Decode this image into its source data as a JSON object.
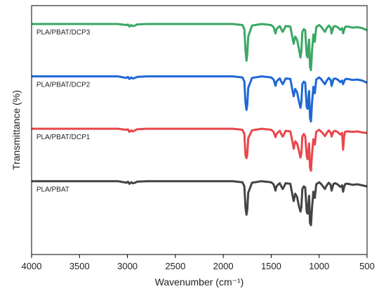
{
  "chart_data": {
    "type": "line",
    "xlabel": "Wavenumber (cm⁻¹)",
    "ylabel": "Transmittance (%)",
    "xlim": [
      4000,
      500
    ],
    "x_reversed": true,
    "xticks": [
      4000,
      3500,
      3000,
      2500,
      2000,
      1500,
      1000,
      500
    ],
    "xtick_labels": [
      "4000",
      "3500",
      "3000",
      "2500",
      "2000",
      "1500",
      "1000",
      "500"
    ],
    "ylim": [
      -0.4,
      4.35
    ],
    "y_ticks_shown": false,
    "grid": false,
    "legend": "none",
    "series": [
      {
        "name": "PLA/PBAT",
        "color": "#444444",
        "offset": 0,
        "x": [
          4000,
          3100,
          3010,
          2995,
          2980,
          2960,
          2945,
          2920,
          2900,
          2800,
          2000,
          1900,
          1800,
          1780,
          1768,
          1758,
          1750,
          1740,
          1700,
          1600,
          1500,
          1475,
          1455,
          1445,
          1430,
          1410,
          1395,
          1380,
          1365,
          1350,
          1300,
          1275,
          1265,
          1250,
          1230,
          1210,
          1195,
          1185,
          1175,
          1160,
          1145,
          1130,
          1120,
          1105,
          1095,
          1085,
          1075,
          1060,
          1045,
          1030,
          1000,
          980,
          960,
          940,
          920,
          900,
          880,
          870,
          860,
          850,
          830,
          800,
          780,
          760,
          750,
          740,
          730,
          720,
          700,
          650,
          600,
          550,
          500
        ],
        "y": [
          1.0,
          1.0,
          0.97,
          0.99,
          0.95,
          0.98,
          0.96,
          0.97,
          0.99,
          1.0,
          1.0,
          1.0,
          0.98,
          0.9,
          0.5,
          0.36,
          0.45,
          0.78,
          0.97,
          1.0,
          0.98,
          0.94,
          0.82,
          0.9,
          0.93,
          0.96,
          0.9,
          0.85,
          0.9,
          0.96,
          0.95,
          0.7,
          0.62,
          0.76,
          0.7,
          0.52,
          0.42,
          0.5,
          0.85,
          0.9,
          0.88,
          0.42,
          0.38,
          0.72,
          0.2,
          0.16,
          0.48,
          0.8,
          0.68,
          0.94,
          0.98,
          0.95,
          0.9,
          0.85,
          0.92,
          0.97,
          0.93,
          0.82,
          0.88,
          0.95,
          0.96,
          0.93,
          0.89,
          0.92,
          0.8,
          0.88,
          0.94,
          0.95,
          0.95,
          0.93,
          0.94,
          0.92,
          0.9
        ]
      },
      {
        "name": "PLA/PBAT/DCP1",
        "color": "#e8474c",
        "offset": 1,
        "x": [
          4000,
          3100,
          3010,
          2995,
          2980,
          2960,
          2945,
          2920,
          2900,
          2800,
          2000,
          1900,
          1800,
          1780,
          1768,
          1758,
          1750,
          1740,
          1700,
          1600,
          1500,
          1475,
          1455,
          1445,
          1430,
          1410,
          1395,
          1380,
          1365,
          1350,
          1300,
          1275,
          1265,
          1250,
          1230,
          1210,
          1195,
          1185,
          1175,
          1160,
          1145,
          1130,
          1120,
          1105,
          1095,
          1085,
          1075,
          1060,
          1045,
          1030,
          1000,
          980,
          960,
          940,
          920,
          900,
          880,
          870,
          860,
          850,
          830,
          800,
          780,
          760,
          750,
          740,
          730,
          720,
          700,
          650,
          600,
          550,
          500
        ],
        "y": [
          1.0,
          1.0,
          0.98,
          0.99,
          0.94,
          0.97,
          0.95,
          0.97,
          0.99,
          1.0,
          1.0,
          1.0,
          0.98,
          0.9,
          0.5,
          0.44,
          0.5,
          0.82,
          0.97,
          1.0,
          0.98,
          0.94,
          0.84,
          0.9,
          0.93,
          0.96,
          0.9,
          0.85,
          0.9,
          0.96,
          0.95,
          0.72,
          0.62,
          0.76,
          0.72,
          0.58,
          0.45,
          0.52,
          0.85,
          0.9,
          0.86,
          0.48,
          0.42,
          0.72,
          0.26,
          0.2,
          0.5,
          0.8,
          0.7,
          0.94,
          0.98,
          0.95,
          0.91,
          0.86,
          0.92,
          0.97,
          0.93,
          0.85,
          0.9,
          0.95,
          0.96,
          0.93,
          0.89,
          0.92,
          0.6,
          0.84,
          0.94,
          0.95,
          0.95,
          0.94,
          0.95,
          0.93,
          0.92
        ]
      },
      {
        "name": "PLA/PBAT/DCP2",
        "color": "#1f68d6",
        "offset": 2,
        "x": [
          4000,
          3100,
          3010,
          2995,
          2980,
          2960,
          2945,
          2920,
          2900,
          2800,
          2000,
          1900,
          1800,
          1780,
          1768,
          1758,
          1750,
          1740,
          1700,
          1600,
          1500,
          1475,
          1455,
          1445,
          1430,
          1410,
          1395,
          1380,
          1365,
          1350,
          1300,
          1275,
          1265,
          1250,
          1230,
          1210,
          1195,
          1185,
          1175,
          1160,
          1145,
          1130,
          1120,
          1105,
          1095,
          1085,
          1075,
          1060,
          1045,
          1030,
          1000,
          980,
          960,
          940,
          920,
          900,
          880,
          870,
          860,
          850,
          830,
          800,
          780,
          760,
          750,
          740,
          730,
          720,
          700,
          650,
          600,
          550,
          500
        ],
        "y": [
          1.0,
          1.0,
          0.97,
          0.99,
          0.95,
          0.98,
          0.96,
          0.97,
          0.99,
          1.0,
          1.0,
          1.0,
          0.98,
          0.9,
          0.5,
          0.36,
          0.45,
          0.78,
          0.97,
          1.0,
          0.98,
          0.94,
          0.82,
          0.9,
          0.93,
          0.96,
          0.9,
          0.85,
          0.9,
          0.96,
          0.95,
          0.7,
          0.62,
          0.76,
          0.7,
          0.52,
          0.4,
          0.5,
          0.85,
          0.9,
          0.88,
          0.42,
          0.38,
          0.72,
          0.2,
          0.14,
          0.48,
          0.8,
          0.68,
          0.94,
          0.98,
          0.95,
          0.9,
          0.85,
          0.92,
          0.97,
          0.93,
          0.82,
          0.88,
          0.95,
          0.96,
          0.93,
          0.89,
          0.92,
          0.85,
          0.9,
          0.94,
          0.95,
          0.95,
          0.93,
          0.94,
          0.92,
          0.88
        ]
      },
      {
        "name": "PLA/PBAT/DCP3",
        "color": "#3aa864",
        "offset": 3,
        "x": [
          4000,
          3100,
          3010,
          2995,
          2980,
          2960,
          2945,
          2920,
          2900,
          2800,
          2000,
          1900,
          1800,
          1780,
          1768,
          1758,
          1750,
          1740,
          1700,
          1600,
          1500,
          1475,
          1455,
          1445,
          1430,
          1410,
          1395,
          1380,
          1365,
          1350,
          1300,
          1275,
          1265,
          1250,
          1230,
          1210,
          1195,
          1185,
          1175,
          1160,
          1145,
          1130,
          1120,
          1105,
          1095,
          1085,
          1075,
          1060,
          1045,
          1030,
          1000,
          980,
          960,
          940,
          920,
          900,
          880,
          870,
          860,
          850,
          830,
          800,
          780,
          760,
          750,
          740,
          730,
          720,
          700,
          650,
          600,
          550,
          500
        ],
        "y": [
          1.0,
          1.0,
          0.98,
          0.99,
          0.95,
          0.98,
          0.96,
          0.97,
          0.99,
          1.0,
          1.0,
          1.0,
          0.98,
          0.9,
          0.5,
          0.3,
          0.42,
          0.76,
          0.97,
          1.0,
          0.98,
          0.94,
          0.82,
          0.9,
          0.93,
          0.96,
          0.9,
          0.85,
          0.9,
          0.96,
          0.95,
          0.7,
          0.62,
          0.76,
          0.7,
          0.52,
          0.36,
          0.48,
          0.85,
          0.9,
          0.88,
          0.4,
          0.36,
          0.7,
          0.18,
          0.12,
          0.46,
          0.8,
          0.66,
          0.94,
          0.98,
          0.95,
          0.9,
          0.85,
          0.92,
          0.97,
          0.93,
          0.82,
          0.88,
          0.95,
          0.96,
          0.93,
          0.89,
          0.92,
          0.82,
          0.88,
          0.94,
          0.95,
          0.95,
          0.93,
          0.94,
          0.92,
          0.88
        ]
      }
    ],
    "series_labels": [
      "PLA/PBAT",
      "PLA/PBAT/DCP1",
      "PLA/PBAT/DCP2",
      "PLA/PBAT/DCP3"
    ]
  }
}
